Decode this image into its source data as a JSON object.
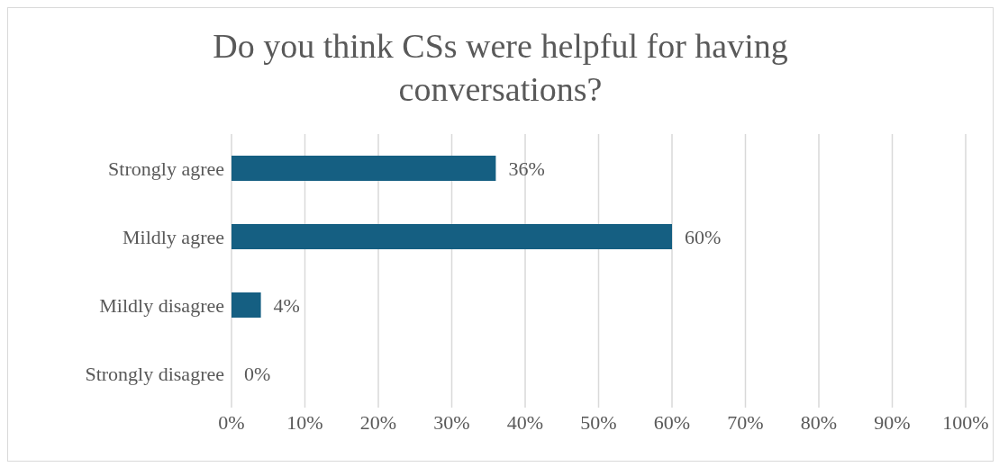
{
  "chart_data": {
    "type": "bar",
    "orientation": "horizontal",
    "title": "Do you think CSs were helpful for having conversations?",
    "categories": [
      "Strongly agree",
      "Mildly agree",
      "Mildly disagree",
      "Strongly disagree"
    ],
    "values": [
      36,
      60,
      4,
      0
    ],
    "color": "#155f82",
    "value_labels": [
      "36%",
      "60%",
      "4%",
      "0%"
    ],
    "xlim": [
      0,
      100
    ],
    "xticks": [
      {
        "value": 0,
        "label": "0%"
      },
      {
        "value": 10,
        "label": "10%"
      },
      {
        "value": 20,
        "label": "20%"
      },
      {
        "value": 30,
        "label": "30%"
      },
      {
        "value": 40,
        "label": "40%"
      },
      {
        "value": 50,
        "label": "50%"
      },
      {
        "value": 60,
        "label": "60%"
      },
      {
        "value": 70,
        "label": "70%"
      },
      {
        "value": 80,
        "label": "80%"
      },
      {
        "value": 90,
        "label": "90%"
      },
      {
        "value": 100,
        "label": "100%"
      }
    ],
    "grid": "x",
    "legend": false
  }
}
